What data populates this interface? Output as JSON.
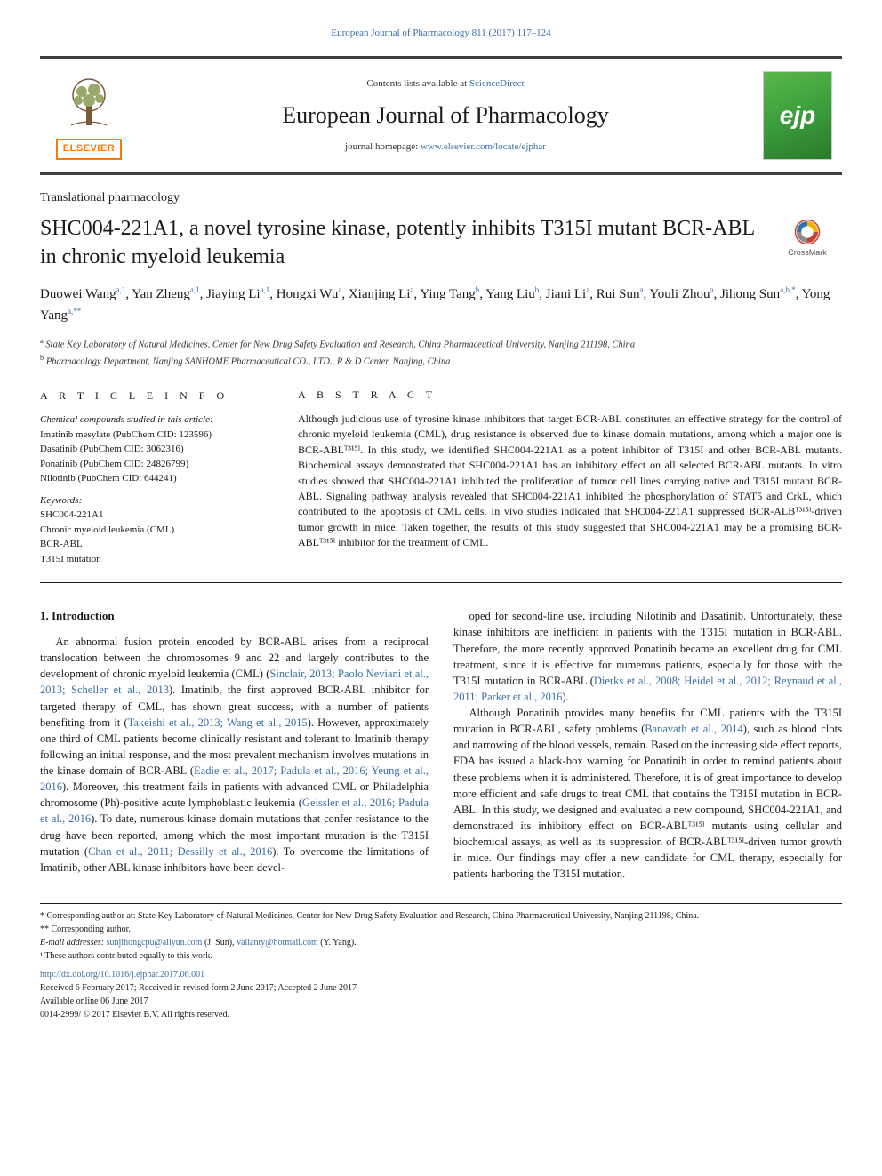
{
  "top_citation": "European Journal of Pharmacology 811 (2017) 117–124",
  "masthead": {
    "contents_prefix": "Contents lists available at ",
    "contents_link": "ScienceDirect",
    "journal_name": "European Journal of Pharmacology",
    "homepage_prefix": "journal homepage: ",
    "homepage_url": "www.elsevier.com/locate/ejphar",
    "publisher_logo": "ELSEVIER",
    "cover_badge": "ejp"
  },
  "section_label": "Translational pharmacology",
  "title": "SHC004-221A1, a novel tyrosine kinase, potently inhibits T315I mutant BCR-ABL in chronic myeloid leukemia",
  "crossmark_label": "CrossMark",
  "authors_html": "Duowei Wang<sup>a,1</sup>, Yan Zheng<sup>a,1</sup>, Jiaying Li<sup>a,1</sup>, Hongxi Wu<sup>a</sup>, Xianjing Li<sup>a</sup>, Ying Tang<sup>b</sup>, Yang Liu<sup>b</sup>, Jiani Li<sup>a</sup>, Rui Sun<sup>a</sup>, Youli Zhou<sup>a</sup>, Jihong Sun<sup>a,b,*</sup>, Yong Yang<sup>a,**</sup>",
  "affiliations": {
    "a": "State Key Laboratory of Natural Medicines, Center for New Drug Safety Evaluation and Research, China Pharmaceutical University, Nanjing 211198, China",
    "b": "Pharmacology Department, Nanjing SANHOME Pharmaceutical CO., LTD., R & D Center, Nanjing, China"
  },
  "article_info": {
    "heading": "A R T I C L E  I N F O",
    "compounds_label": "Chemical compounds studied in this article:",
    "compounds": [
      "Imatinib mesylate (PubChem CID: 123596)",
      "Dasatinib (PubChem CID: 3062316)",
      "Ponatinib (PubChem CID: 24826799)",
      "Nilotinib (PubChem CID: 644241)"
    ],
    "keywords_label": "Keywords:",
    "keywords": [
      "SHC004-221A1",
      "Chronic myeloid leukemia (CML)",
      "BCR-ABL",
      "T315I mutation"
    ]
  },
  "abstract": {
    "heading": "A B S T R A C T",
    "text": "Although judicious use of tyrosine kinase inhibitors that target BCR-ABL constitutes an effective strategy for the control of chronic myeloid leukemia (CML), drug resistance is observed due to kinase domain mutations, among which a major one is BCR-ABLᵀ³¹⁵ᴵ. In this study, we identified SHC004-221A1 as a potent inhibitor of T315I and other BCR-ABL mutants. Biochemical assays demonstrated that SHC004-221A1 has an inhibitory effect on all selected BCR-ABL mutants. In vitro studies showed that SHC004-221A1 inhibited the proliferation of tumor cell lines carrying native and T315I mutant BCR-ABL. Signaling pathway analysis revealed that SHC004-221A1 inhibited the phosphorylation of STAT5 and CrkL, which contributed to the apoptosis of CML cells. In vivo studies indicated that SHC004-221A1 suppressed BCR-ALBᵀ³¹⁵ᴵ-driven tumor growth in mice. Taken together, the results of this study suggested that SHC004-221A1 may be a promising BCR-ABLᵀ³¹⁵ᴵ inhibitor for the treatment of CML."
  },
  "body": {
    "heading": "1. Introduction",
    "p1": "An abnormal fusion protein encoded by BCR-ABL arises from a reciprocal translocation between the chromosomes 9 and 22 and largely contributes to the development of chronic myeloid leukemia (CML) (Sinclair, 2013; Paolo Neviani et al., 2013; Scheller et al., 2013). Imatinib, the first approved BCR-ABL inhibitor for targeted therapy of CML, has shown great success, with a number of patients benefiting from it (Takeishi et al., 2013; Wang et al., 2015). However, approximately one third of CML patients become clinically resistant and tolerant to Imatinib therapy following an initial response, and the most prevalent mechanism involves mutations in the kinase domain of BCR-ABL (Eadie et al., 2017; Padula et al., 2016; Yeung et al., 2016). Moreover, this treatment fails in patients with advanced CML or Philadelphia chromosome (Ph)-positive acute lymphoblastic leukemia (Geissler et al., 2016; Padula et al., 2016). To date, numerous kinase domain mutations that confer resistance to the drug have been reported, among which the most important mutation is the T315I mutation (Chan et al., 2011; Dessilly et al., 2016). To overcome the limitations of Imatinib, other ABL kinase inhibitors have been devel-",
    "p2": "oped for second-line use, including Nilotinib and Dasatinib. Unfortunately, these kinase inhibitors are inefficient in patients with the T315I mutation in BCR-ABL. Therefore, the more recently approved Ponatinib became an excellent drug for CML treatment, since it is effective for numerous patients, especially for those with the T315I mutation in BCR-ABL (Dierks et al., 2008; Heidel et al., 2012; Reynaud et al., 2011; Parker et al., 2016).",
    "p3": "Although Ponatinib provides many benefits for CML patients with the T315I mutation in BCR-ABL, safety problems (Banavath et al., 2014), such as blood clots and narrowing of the blood vessels, remain. Based on the increasing side effect reports, FDA has issued a black-box warning for Ponatinib in order to remind patients about these problems when it is administered. Therefore, it is of great importance to develop more efficient and safe drugs to treat CML that contains the T315I mutation in BCR-ABL. In this study, we designed and evaluated a new compound, SHC004-221A1, and demonstrated its inhibitory effect on BCR-ABLᵀ³¹⁵ᴵ mutants using cellular and biochemical assays, as well as its suppression of BCR-ABLᵀ³¹⁵ᴵ-driven tumor growth in mice. Our findings may offer a new candidate for CML therapy, especially for patients harboring the T315I mutation."
  },
  "footnotes": {
    "corr1": "* Corresponding author at: State Key Laboratory of Natural Medicines, Center for New Drug Safety Evaluation and Research, China Pharmaceutical University, Nanjing 211198, China.",
    "corr2": "** Corresponding author.",
    "emails_label": "E-mail addresses: ",
    "email1": "sunjihongcpu@aliyun.com",
    "email1_who": " (J. Sun), ",
    "email2": "valianty@hotmail.com",
    "email2_who": " (Y. Yang).",
    "equal": "¹ These authors contributed equally to this work.",
    "doi": "http://dx.doi.org/10.1016/j.ejphar.2017.06.001",
    "received": "Received 6 February 2017; Received in revised form 2 June 2017; Accepted 2 June 2017",
    "available": "Available online 06 June 2017",
    "copyright": "0014-2999/ © 2017 Elsevier B.V. All rights reserved."
  },
  "colors": {
    "link": "#3a6ea5",
    "rule": "#1a1a1a",
    "elsevier_orange": "#ff7a00",
    "cover_green_a": "#58b84a",
    "cover_green_b": "#2a7a2a",
    "crossmark_ring": "#c8432f",
    "crossmark_red": "#c8432f",
    "crossmark_yellow": "#f2b200",
    "crossmark_blue": "#2c74b3",
    "crossmark_gray": "#8a8a8a"
  },
  "typography": {
    "body_pt": 12.5,
    "title_pt": 24,
    "journal_pt": 26,
    "abstract_pt": 12,
    "footnote_pt": 10,
    "info_pt": 11
  }
}
